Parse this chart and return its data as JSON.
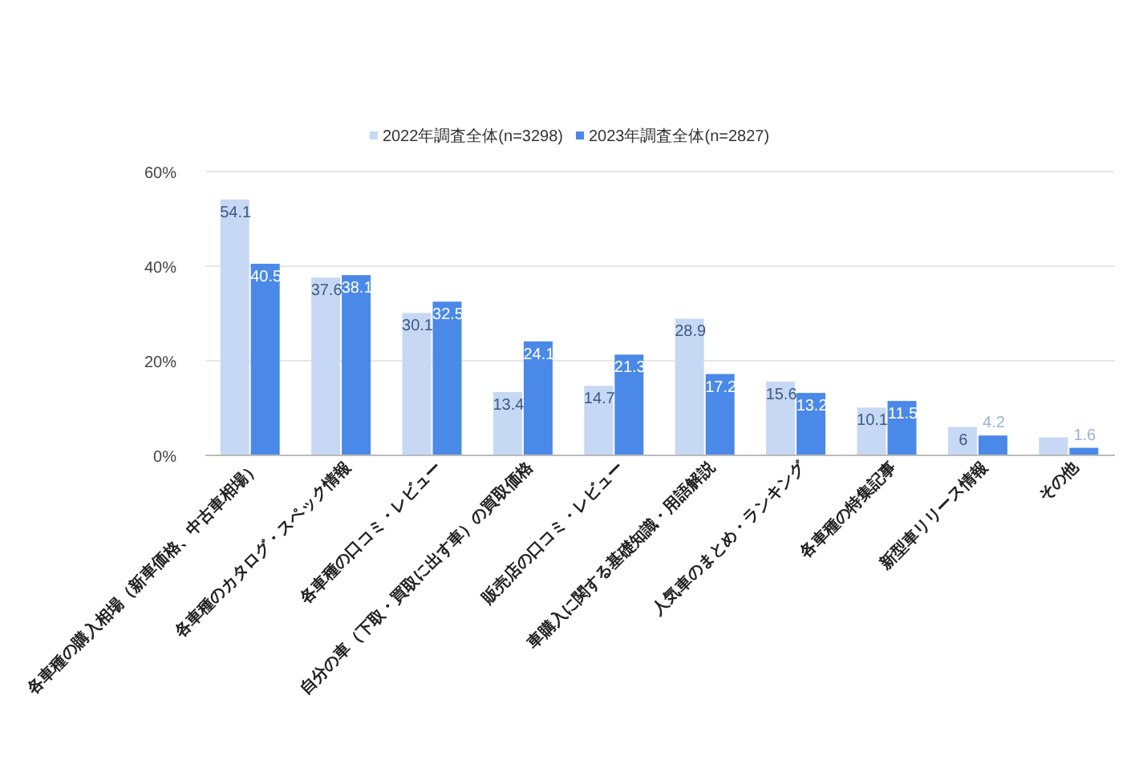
{
  "chart_data": {
    "type": "bar",
    "categories": [
      "各車種の購入相場（新車価格、中古車相場）",
      "各車種のカタログ・スペック情報",
      "各車種の口コミ・レビュー",
      "自分の車（下取・買取に出す車）の買取価格",
      "販売店の口コミ・レビュー",
      "車購入に関する基礎知識・用語解説",
      "人気車のまとめ・ランキング",
      "各車種の特集記事",
      "新型車リリース情報",
      "その他"
    ],
    "series": [
      {
        "name": "2022年調査全体(n=3298)",
        "color": "#c6d8f4",
        "values": [
          54.1,
          37.6,
          30.1,
          13.4,
          14.7,
          28.9,
          15.6,
          10.1,
          6,
          3.8
        ],
        "value_labels": [
          "54.1",
          "37.6",
          "30.1",
          "13.4",
          "14.7",
          "28.9",
          "15.6",
          "10.1",
          "6",
          null
        ]
      },
      {
        "name": "2023年調査全体(n=2827)",
        "color": "#4a89e8",
        "values": [
          40.5,
          38.1,
          32.5,
          24.1,
          21.3,
          17.2,
          13.2,
          11.5,
          4.2,
          1.6
        ],
        "value_labels": [
          "40.5",
          "38.1",
          "32.5",
          "24.1",
          "21.3",
          "17.2",
          "13.2",
          "11.5",
          "4.2",
          "1.6"
        ]
      }
    ],
    "ylim": [
      0,
      60
    ],
    "yticks": [
      {
        "value": 0,
        "label": "0%"
      },
      {
        "value": 20,
        "label": "20%"
      },
      {
        "value": 40,
        "label": "40%"
      },
      {
        "value": 60,
        "label": "60%"
      }
    ],
    "grid": "y",
    "legend": "top"
  }
}
